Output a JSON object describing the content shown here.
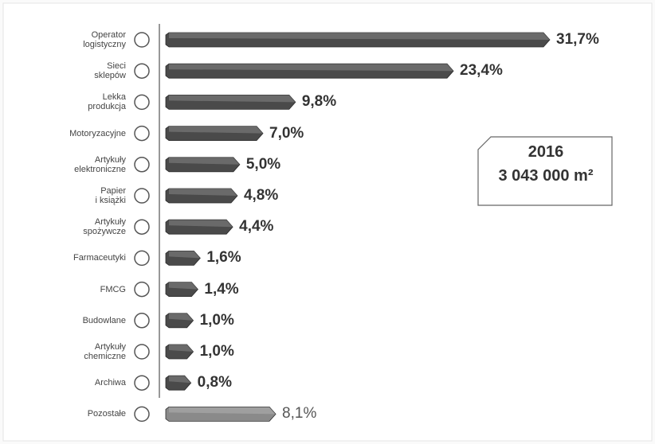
{
  "chart_data": {
    "type": "bar",
    "categories": [
      "Operator\nlogistyczny",
      "Sieci\nsklepów",
      "Lekka\nprodukcja",
      "Motoryzacyjne",
      "Artykuły\nelektroniczne",
      "Papier\ni książki",
      "Artykuły\nspożywcze",
      "Farmaceutyki",
      "FMCG",
      "Budowlane",
      "Artykuły\nchemiczne",
      "Archiwa",
      "Pozostałe"
    ],
    "values": [
      31.7,
      23.4,
      9.8,
      7.0,
      5.0,
      4.8,
      4.4,
      1.6,
      1.4,
      1.0,
      1.0,
      0.8,
      8.1
    ],
    "value_labels": [
      "31,7%",
      "23,4%",
      "9,8%",
      "7,0%",
      "5,0%",
      "4,8%",
      "4,4%",
      "1,6%",
      "1,4%",
      "1,0%",
      "1,0%",
      "0,8%",
      "8,1%"
    ],
    "colors": [
      "#4a4a4a",
      "#4a4a4a",
      "#4a4a4a",
      "#4a4a4a",
      "#4a4a4a",
      "#4a4a4a",
      "#4a4a4a",
      "#4a4a4a",
      "#4a4a4a",
      "#4a4a4a",
      "#4a4a4a",
      "#4a4a4a",
      "#8a8a8a"
    ],
    "annotations": [
      "2016",
      "3 043 000 m²"
    ]
  }
}
